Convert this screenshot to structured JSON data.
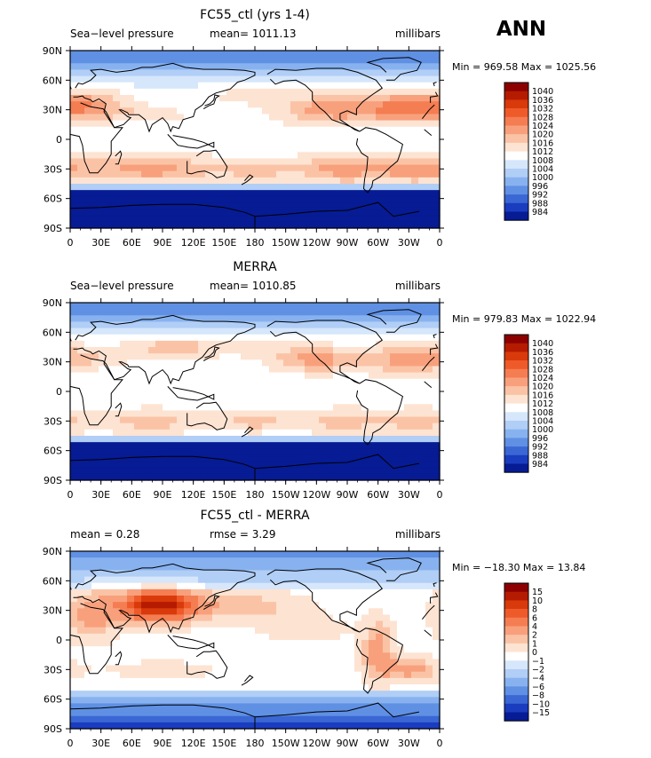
{
  "season": "ANN",
  "chart_data": [
    {
      "type": "heatmap",
      "title": "FC55_ctl (yrs 1-4)",
      "variable": "Sea−level pressure",
      "stat_left": "",
      "mean_text": "mean=  1011.13",
      "units": "millibars",
      "minmax": "Min = 969.58  Max = 1025.56",
      "x_tick_labels": [
        "0",
        "30E",
        "60E",
        "90E",
        "120E",
        "150E",
        "180",
        "150W",
        "120W",
        "90W",
        "60W",
        "30W",
        "0"
      ],
      "y_tick_labels": [
        "90N",
        "60N",
        "30N",
        "0",
        "30S",
        "60S",
        "90S"
      ],
      "colorbar_levels": [
        "1040",
        "1036",
        "1032",
        "1028",
        "1024",
        "1020",
        "1016",
        "1012",
        "1008",
        "1004",
        "1000",
        "996",
        "992",
        "988",
        "984"
      ],
      "colors": [
        "#8c0000",
        "#b51b00",
        "#d93a0b",
        "#ef5a2a",
        "#f57d52",
        "#f8a07c",
        "#fbc3a6",
        "#fde3d2",
        "#ffffff",
        "#d6e6fb",
        "#b0cef6",
        "#88b2ef",
        "#5f90e4",
        "#3a67d4",
        "#1a3cbf",
        "#061b94"
      ]
    },
    {
      "type": "heatmap",
      "title": "MERRA",
      "variable": "Sea−level pressure",
      "stat_left": "",
      "mean_text": "mean=  1010.85",
      "units": "millibars",
      "minmax": "Min = 979.83  Max = 1022.94",
      "x_tick_labels": [
        "0",
        "30E",
        "60E",
        "90E",
        "120E",
        "150E",
        "180",
        "150W",
        "120W",
        "90W",
        "60W",
        "30W",
        "0"
      ],
      "y_tick_labels": [
        "90N",
        "60N",
        "30N",
        "0",
        "30S",
        "60S",
        "90S"
      ],
      "colorbar_levels": [
        "1040",
        "1036",
        "1032",
        "1028",
        "1024",
        "1020",
        "1016",
        "1012",
        "1008",
        "1004",
        "1000",
        "996",
        "992",
        "988",
        "984"
      ],
      "colors": [
        "#8c0000",
        "#b51b00",
        "#d93a0b",
        "#ef5a2a",
        "#f57d52",
        "#f8a07c",
        "#fbc3a6",
        "#fde3d2",
        "#ffffff",
        "#d6e6fb",
        "#b0cef6",
        "#88b2ef",
        "#5f90e4",
        "#3a67d4",
        "#1a3cbf",
        "#061b94"
      ]
    },
    {
      "type": "heatmap",
      "title": "FC55_ctl - MERRA",
      "variable": "",
      "stat_left": "mean =     0.28",
      "mean_text": "rmse =     3.29",
      "units": "millibars",
      "minmax": "Min = −18.30  Max =   13.84",
      "x_tick_labels": [
        "0",
        "30E",
        "60E",
        "90E",
        "120E",
        "150E",
        "180",
        "150W",
        "120W",
        "90W",
        "60W",
        "30W",
        "0"
      ],
      "y_tick_labels": [
        "90N",
        "60N",
        "30N",
        "0",
        "30S",
        "60S",
        "90S"
      ],
      "colorbar_levels": [
        "15",
        "10",
        "8",
        "6",
        "4",
        "2",
        "1",
        "0",
        "−1",
        "−2",
        "−4",
        "−6",
        "−8",
        "−10",
        "−15"
      ],
      "colors": [
        "#8c0000",
        "#b51b00",
        "#d93a0b",
        "#ef5a2a",
        "#f57d52",
        "#f8a07c",
        "#fbc3a6",
        "#fde3d2",
        "#ffffff",
        "#d6e6fb",
        "#b0cef6",
        "#88b2ef",
        "#5f90e4",
        "#3a67d4",
        "#1a3cbf",
        "#061b94"
      ]
    }
  ]
}
